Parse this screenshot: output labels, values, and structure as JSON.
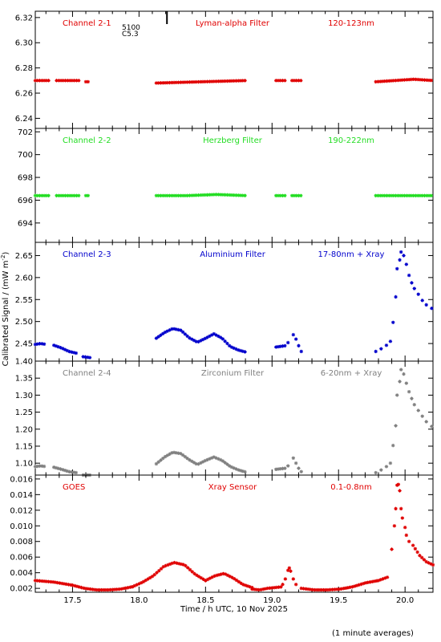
{
  "figure": {
    "ylabel_html": "Calibrated Signal / (mW m",
    "ylabel_sup": "-2",
    "ylabel_tail": ")",
    "xlabel": "Time / h UTC, 10 Nov 2025",
    "footnote": "(1 minute averages)",
    "event_marker": {
      "time": 18.21,
      "label1": "5100",
      "label2": "C5.3"
    }
  },
  "chart_data": [
    {
      "type": "scatter",
      "channel": "Channel 2-1",
      "filter": "Lyman-alpha Filter",
      "band": "120-123nm",
      "color": "#e00000",
      "xlim": [
        17.22,
        20.21
      ],
      "ylim": [
        6.232,
        6.325
      ],
      "yticks": [
        "6.24",
        "6.26",
        "6.28",
        "6.30",
        "6.32"
      ],
      "xticks": [
        "17.5",
        "18.0",
        "18.5",
        "19.0",
        "19.5",
        "20.0"
      ],
      "segments": [
        {
          "x0": 17.22,
          "x1": 17.33,
          "values": [
            6.27,
            6.27
          ]
        },
        {
          "x0": 17.38,
          "x1": 17.55,
          "values": [
            6.27,
            6.27
          ]
        },
        {
          "x0": 17.6,
          "x1": 17.63,
          "values": [
            6.269,
            6.269
          ]
        },
        {
          "x0": 18.13,
          "x1": 18.81,
          "values": [
            6.268,
            6.269,
            6.27
          ]
        },
        {
          "x0": 19.03,
          "x1": 19.1,
          "values": [
            6.27,
            6.27
          ]
        },
        {
          "x0": 19.15,
          "x1": 19.22,
          "values": [
            6.27,
            6.27
          ]
        },
        {
          "x0": 19.78,
          "x1": 20.21,
          "values": [
            6.269,
            6.27,
            6.271,
            6.27
          ]
        }
      ]
    },
    {
      "type": "scatter",
      "channel": "Channel 2-2",
      "filter": "Herzberg Filter",
      "band": "190-222nm",
      "color": "#22dd22",
      "xlim": [
        17.22,
        20.21
      ],
      "ylim": [
        692.3,
        702.3
      ],
      "yticks": [
        "694",
        "696",
        "698",
        "700",
        "702"
      ],
      "xticks": [
        "17.5",
        "18.0",
        "18.5",
        "19.0",
        "19.5",
        "20.0"
      ],
      "segments": [
        {
          "x0": 17.22,
          "x1": 17.33,
          "values": [
            696.4,
            696.4
          ]
        },
        {
          "x0": 17.38,
          "x1": 17.55,
          "values": [
            696.4,
            696.4
          ]
        },
        {
          "x0": 17.6,
          "x1": 17.63,
          "values": [
            696.4,
            696.4
          ]
        },
        {
          "x0": 18.13,
          "x1": 18.81,
          "values": [
            696.4,
            696.4,
            696.5,
            696.4
          ]
        },
        {
          "x0": 19.03,
          "x1": 19.1,
          "values": [
            696.4,
            696.4
          ]
        },
        {
          "x0": 19.15,
          "x1": 19.22,
          "values": [
            696.4,
            696.4
          ]
        },
        {
          "x0": 19.78,
          "x1": 20.21,
          "values": [
            696.4,
            696.4
          ]
        }
      ]
    },
    {
      "type": "scatter",
      "channel": "Channel 2-3",
      "filter": "Aluminium Filter",
      "band": "17-80nm + Xray",
      "color": "#0000cc",
      "xlim": [
        17.22,
        20.21
      ],
      "ylim": [
        2.41,
        2.68
      ],
      "yticks": [
        "2.45",
        "2.50",
        "2.55",
        "2.60",
        "2.65"
      ],
      "xticks": [
        "17.5",
        "18.0",
        "18.5",
        "19.0",
        "19.5",
        "20.0"
      ],
      "segments": [
        {
          "x0": 17.22,
          "x1": 17.3,
          "values": [
            2.448,
            2.45,
            2.448
          ]
        },
        {
          "x0": 17.36,
          "x1": 17.53,
          "values": [
            2.446,
            2.44,
            2.432,
            2.428
          ]
        },
        {
          "x0": 17.58,
          "x1": 17.63,
          "values": [
            2.42,
            2.418
          ]
        },
        {
          "x0": 18.13,
          "x1": 18.81,
          "values": [
            2.462,
            2.475,
            2.484,
            2.48,
            2.463,
            2.453,
            2.462,
            2.472,
            2.462,
            2.443,
            2.435,
            2.43
          ]
        },
        {
          "x0": 19.03,
          "x1": 19.1,
          "values": [
            2.442,
            2.445
          ]
        }
      ],
      "points": [
        [
          19.12,
          2.452
        ],
        [
          19.16,
          2.47
        ],
        [
          19.18,
          2.46
        ],
        [
          19.2,
          2.445
        ],
        [
          19.22,
          2.432
        ],
        [
          19.78,
          2.432
        ],
        [
          19.82,
          2.438
        ],
        [
          19.86,
          2.446
        ],
        [
          19.89,
          2.455
        ],
        [
          19.91,
          2.498
        ],
        [
          19.93,
          2.556
        ],
        [
          19.94,
          2.62
        ],
        [
          19.96,
          2.64
        ],
        [
          19.97,
          2.658
        ],
        [
          19.99,
          2.65
        ],
        [
          20.01,
          2.63
        ],
        [
          20.03,
          2.605
        ],
        [
          20.05,
          2.588
        ],
        [
          20.07,
          2.575
        ],
        [
          20.1,
          2.562
        ],
        [
          20.13,
          2.548
        ],
        [
          20.16,
          2.538
        ],
        [
          20.2,
          2.53
        ]
      ]
    },
    {
      "type": "scatter",
      "channel": "Channel 2-4",
      "filter": "Zirconium Filter",
      "band": "6-20nm + Xray",
      "color": "#808080",
      "xlim": [
        17.22,
        20.21
      ],
      "ylim": [
        1.065,
        1.4
      ],
      "yticks": [
        "1.10",
        "1.15",
        "1.20",
        "1.25",
        "1.30",
        "1.35",
        "1.40"
      ],
      "xticks": [
        "17.5",
        "18.0",
        "18.5",
        "19.0",
        "19.5",
        "20.0"
      ],
      "segments": [
        {
          "x0": 17.22,
          "x1": 17.3,
          "values": [
            1.09,
            1.092,
            1.09
          ]
        },
        {
          "x0": 17.36,
          "x1": 17.53,
          "values": [
            1.088,
            1.082,
            1.075,
            1.072
          ]
        },
        {
          "x0": 17.58,
          "x1": 17.63,
          "values": [
            1.065,
            1.065
          ]
        },
        {
          "x0": 18.13,
          "x1": 18.81,
          "values": [
            1.098,
            1.118,
            1.132,
            1.128,
            1.11,
            1.096,
            1.108,
            1.118,
            1.108,
            1.09,
            1.08,
            1.073
          ]
        },
        {
          "x0": 19.03,
          "x1": 19.1,
          "values": [
            1.082,
            1.085
          ]
        }
      ],
      "points": [
        [
          19.12,
          1.092
        ],
        [
          19.16,
          1.115
        ],
        [
          19.18,
          1.1
        ],
        [
          19.2,
          1.085
        ],
        [
          19.22,
          1.075
        ],
        [
          19.78,
          1.072
        ],
        [
          19.82,
          1.08
        ],
        [
          19.86,
          1.09
        ],
        [
          19.89,
          1.1
        ],
        [
          19.91,
          1.152
        ],
        [
          19.93,
          1.21
        ],
        [
          19.94,
          1.3
        ],
        [
          19.96,
          1.34
        ],
        [
          19.97,
          1.375
        ],
        [
          19.99,
          1.362
        ],
        [
          20.01,
          1.335
        ],
        [
          20.03,
          1.31
        ],
        [
          20.05,
          1.29
        ],
        [
          20.07,
          1.272
        ],
        [
          20.1,
          1.255
        ],
        [
          20.13,
          1.238
        ],
        [
          20.16,
          1.222
        ],
        [
          20.2,
          1.208
        ]
      ]
    },
    {
      "type": "scatter",
      "channel": "GOES",
      "filter": "Xray Sensor",
      "band": "0.1-0.8nm",
      "color": "#e00000",
      "xlim": [
        17.22,
        20.21
      ],
      "ylim": [
        0.0015,
        0.0165
      ],
      "yticks": [
        "0.002",
        "0.004",
        "0.006",
        "0.008",
        "0.010",
        "0.012",
        "0.014",
        "0.016"
      ],
      "xticks": [
        "17.5",
        "18.0",
        "18.5",
        "19.0",
        "19.5",
        "20.0"
      ],
      "segments": [
        {
          "x0": 17.22,
          "x1": 17.5,
          "values": [
            0.003,
            0.0029,
            0.0028,
            0.0026,
            0.0024
          ]
        },
        {
          "x0": 17.5,
          "x1": 17.95,
          "values": [
            0.0024,
            0.002,
            0.0018,
            0.0018,
            0.0019,
            0.0022
          ]
        },
        {
          "x0": 17.95,
          "x1": 18.5,
          "values": [
            0.0022,
            0.0028,
            0.0036,
            0.0048,
            0.0053,
            0.005,
            0.0038,
            0.003
          ]
        },
        {
          "x0": 18.5,
          "x1": 18.85,
          "values": [
            0.003,
            0.0036,
            0.0039,
            0.0033,
            0.0025,
            0.0021
          ]
        },
        {
          "x0": 18.85,
          "x1": 19.08,
          "values": [
            0.0019,
            0.0018,
            0.002,
            0.0021,
            0.0022
          ]
        },
        {
          "x0": 19.22,
          "x1": 19.8,
          "values": [
            0.002,
            0.0018,
            0.0018,
            0.0019,
            0.0022,
            0.0027,
            0.003
          ]
        },
        {
          "x0": 19.8,
          "x1": 19.88,
          "values": [
            0.003,
            0.0035
          ]
        },
        {
          "x0": 20.06,
          "x1": 20.21,
          "values": [
            0.0075,
            0.0062,
            0.0054,
            0.005
          ]
        }
      ],
      "points": [
        [
          19.08,
          0.0025
        ],
        [
          19.1,
          0.0032
        ],
        [
          19.12,
          0.0043
        ],
        [
          19.13,
          0.0046
        ],
        [
          19.14,
          0.0042
        ],
        [
          19.16,
          0.0032
        ],
        [
          19.18,
          0.0025
        ],
        [
          19.9,
          0.007
        ],
        [
          19.92,
          0.01
        ],
        [
          19.93,
          0.0122
        ],
        [
          19.94,
          0.0152
        ],
        [
          19.95,
          0.0153
        ],
        [
          19.96,
          0.0145
        ],
        [
          19.97,
          0.0122
        ],
        [
          19.98,
          0.011
        ],
        [
          20.0,
          0.0098
        ],
        [
          20.01,
          0.0088
        ],
        [
          20.03,
          0.008
        ]
      ]
    }
  ]
}
